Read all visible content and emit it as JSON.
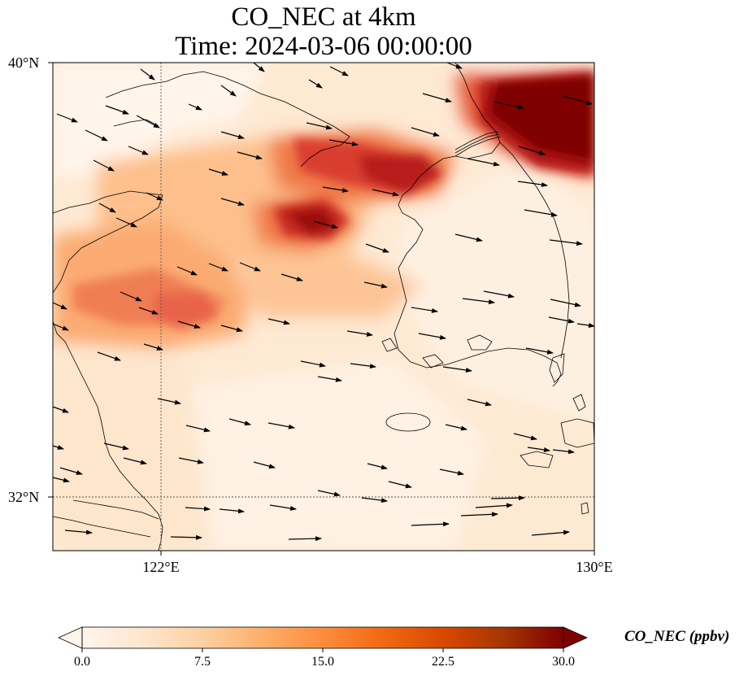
{
  "title": {
    "line1": "CO_NEC at 4km",
    "line2": "Time: 2024-03-06 00:00:00"
  },
  "map": {
    "lat_labels": [
      "40°N",
      "32°N"
    ],
    "lon_labels": [
      "122°E",
      "130°E"
    ],
    "gridlines": true,
    "gridline_style": "dotted"
  },
  "colorbar": {
    "label": "CO_NEC (ppbv)",
    "ticks": [
      "0.0",
      "7.5",
      "15.0",
      "22.5",
      "30.0"
    ],
    "min": 0,
    "max": 30,
    "extend": "both",
    "colormap": [
      "#fff5eb",
      "#fee6ce",
      "#fdd0a2",
      "#fdae6b",
      "#fd8d3c",
      "#f16913",
      "#d94801",
      "#a63603",
      "#7f0000"
    ]
  },
  "colors": {
    "coastline": "#000000",
    "wind_arrow": "#000000",
    "background": "#ffffff"
  }
}
